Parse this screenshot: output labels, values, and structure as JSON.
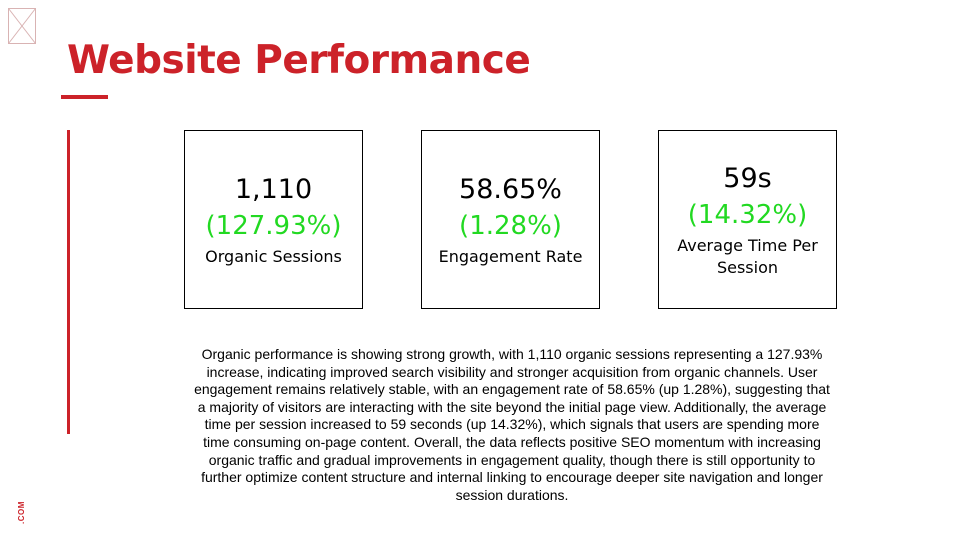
{
  "header": {
    "title": "Website Performance"
  },
  "side_text": ".COM",
  "metrics": [
    {
      "value": "1,110",
      "change": "(127.93%)",
      "label": "Organic Sessions"
    },
    {
      "value": "58.65%",
      "change": "(1.28%)",
      "label": "Engagement Rate"
    },
    {
      "value": "59s",
      "change": "(14.32%)",
      "label": "Average Time Per Session"
    }
  ],
  "summary": "Organic performance is showing strong growth, with 1,110 organic sessions representing a 127.93% increase, indicating improved search visibility and stronger acquisition from organic channels. User engagement remains relatively stable, with an engagement rate of 58.65% (up 1.28%), suggesting that a majority of visitors are interacting with the site beyond the initial page view. Additionally, the average time per session increased to 59 seconds (up 14.32%), which signals that users are spending more time consuming on-page content. Overall, the data reflects positive SEO momentum with increasing organic traffic and gradual improvements in engagement quality, though there is still opportunity to further optimize content structure and internal linking to encourage deeper site navigation and longer session durations.",
  "colors": {
    "accent": "#cc2229",
    "positive": "#22d922"
  }
}
